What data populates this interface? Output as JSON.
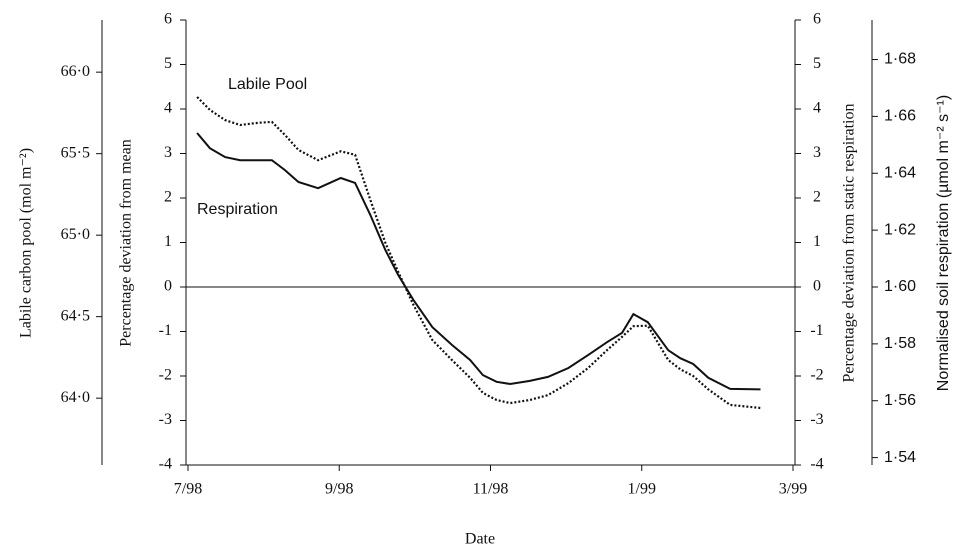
{
  "chart_data": {
    "type": "line",
    "xlabel": "Date",
    "ylabel": "Percentage deviation from mean",
    "y2label": "Percentage deviation from static respiration",
    "x": [
      0.12,
      0.29,
      0.49,
      0.69,
      0.93,
      1.11,
      1.28,
      1.46,
      1.72,
      2.02,
      2.21,
      2.41,
      2.61,
      2.78,
      2.98,
      3.23,
      3.49,
      3.73,
      3.9,
      4.08,
      4.26,
      4.52,
      4.76,
      5.03,
      5.29,
      5.54,
      5.74,
      5.89,
      6.08,
      6.35,
      6.51,
      6.68,
      6.88,
      7.17,
      7.57
    ],
    "xlim": [
      0,
      8
    ],
    "xticks": [
      {
        "value": 0,
        "label": "7/98"
      },
      {
        "value": 2,
        "label": "9/98"
      },
      {
        "value": 4,
        "label": "11/98"
      },
      {
        "value": 6,
        "label": "1/99"
      },
      {
        "value": 8,
        "label": "3/99"
      }
    ],
    "ylim": [
      -4,
      6
    ],
    "yticks": [
      -4,
      -3,
      -2,
      -1,
      0,
      1,
      2,
      3,
      4,
      5,
      6
    ],
    "y2lim": [
      -4,
      6
    ],
    "y2ticks": [
      -4,
      -3,
      -2,
      -1,
      0,
      1,
      2,
      3,
      4,
      5,
      6
    ],
    "series": [
      {
        "name": "Labile Pool",
        "color": "#111111",
        "dash": "dotted",
        "values": [
          4.27,
          3.98,
          3.75,
          3.64,
          3.69,
          3.71,
          3.42,
          3.08,
          2.85,
          3.05,
          2.97,
          1.96,
          0.99,
          0.34,
          -0.4,
          -1.19,
          -1.64,
          -2.04,
          -2.38,
          -2.54,
          -2.61,
          -2.54,
          -2.43,
          -2.16,
          -1.82,
          -1.42,
          -1.12,
          -0.88,
          -0.87,
          -1.64,
          -1.85,
          -2.0,
          -2.3,
          -2.65,
          -2.72
        ]
      },
      {
        "name": "Respiration",
        "color": "#111111",
        "dash": "solid",
        "values": [
          3.46,
          3.12,
          2.92,
          2.85,
          2.85,
          2.85,
          2.63,
          2.36,
          2.22,
          2.45,
          2.34,
          1.62,
          0.83,
          0.27,
          -0.29,
          -0.9,
          -1.3,
          -1.64,
          -1.98,
          -2.13,
          -2.18,
          -2.11,
          -2.02,
          -1.82,
          -1.53,
          -1.24,
          -1.03,
          -0.61,
          -0.79,
          -1.42,
          -1.6,
          -1.73,
          -2.04,
          -2.29,
          -2.3
        ]
      }
    ],
    "left_outer_axis": {
      "label": "Labile carbon pool (mol m⁻²)",
      "lim": [
        63.59,
        66.32
      ],
      "ticks": [
        {
          "value": 64.0,
          "label": "64·0"
        },
        {
          "value": 64.5,
          "label": "64·5"
        },
        {
          "value": 65.0,
          "label": "65·0"
        },
        {
          "value": 65.5,
          "label": "65·5"
        },
        {
          "value": 66.0,
          "label": "66·0"
        }
      ]
    },
    "right_outer_axis": {
      "label": "Normalised soil respiration (µmol m⁻² s⁻¹)",
      "lim": [
        1.5374,
        1.6939
      ],
      "ticks": [
        {
          "value": 1.54,
          "label": "1·54"
        },
        {
          "value": 1.56,
          "label": "1·56"
        },
        {
          "value": 1.58,
          "label": "1·58"
        },
        {
          "value": 1.6,
          "label": "1·60"
        },
        {
          "value": 1.62,
          "label": "1·62"
        },
        {
          "value": 1.64,
          "label": "1·64"
        },
        {
          "value": 1.66,
          "label": "1·66"
        },
        {
          "value": 1.68,
          "label": "1·68"
        }
      ]
    },
    "zero_line": true
  }
}
